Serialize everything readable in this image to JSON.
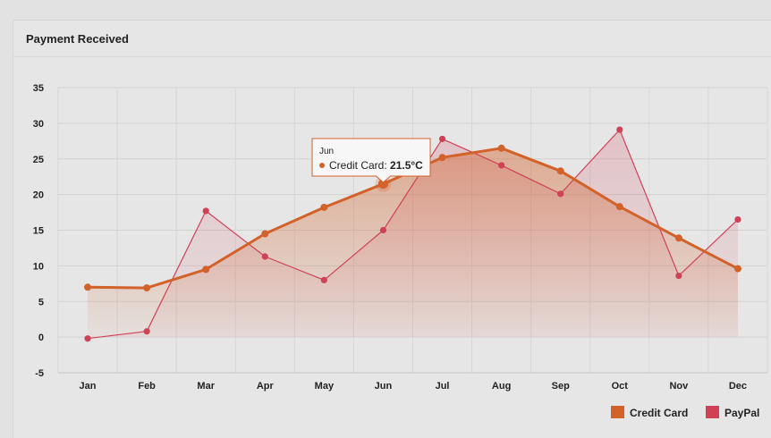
{
  "panel": {
    "title": "Payment Received"
  },
  "chart_data": {
    "type": "line",
    "title": "",
    "xlabel": "",
    "ylabel": "",
    "categories": [
      "Jan",
      "Feb",
      "Mar",
      "Apr",
      "May",
      "Jun",
      "Jul",
      "Aug",
      "Sep",
      "Oct",
      "Nov",
      "Dec"
    ],
    "ylim": [
      -5,
      35
    ],
    "yticks": [
      -5,
      0,
      5,
      10,
      15,
      20,
      25,
      30,
      35
    ],
    "grid": true,
    "legend_position": "bottom-right",
    "series": [
      {
        "name": "Credit Card",
        "color": "#d2622a",
        "area": true,
        "values": [
          7.0,
          6.9,
          9.5,
          14.5,
          18.2,
          21.5,
          25.2,
          26.5,
          23.3,
          18.3,
          13.9,
          9.6
        ]
      },
      {
        "name": "PayPal",
        "color": "#d04156",
        "area": true,
        "values": [
          -0.2,
          0.8,
          17.7,
          11.3,
          8.0,
          15.0,
          27.8,
          24.1,
          20.1,
          29.1,
          8.6,
          16.5
        ]
      }
    ],
    "tooltip": {
      "month": "Jun",
      "series": "Credit Card",
      "label": "Credit Card: ",
      "value": "21.5°C"
    }
  }
}
